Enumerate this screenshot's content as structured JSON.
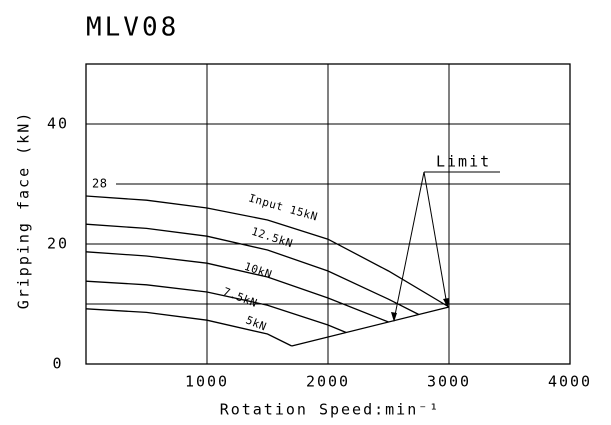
{
  "chart_data": {
    "type": "line",
    "title": "MLV08",
    "x_label": "Rotation Speed:min⁻¹",
    "y_label": "Gripping face (kN)",
    "xlim": [
      0,
      4000
    ],
    "xticks": [
      1000,
      2000,
      3000,
      4000
    ],
    "ylim": [
      0,
      50
    ],
    "yticks": [
      0,
      20,
      40
    ],
    "ygrid": [
      10,
      20,
      30,
      40
    ],
    "grid": true,
    "annotations": [
      "28",
      "Limit"
    ],
    "series": [
      {
        "name": "Input 15kN",
        "color": "#000000",
        "x": [
          0,
          500,
          1000,
          1500,
          2000,
          2500,
          3000
        ],
        "values": [
          28,
          27.3,
          26,
          24,
          20.8,
          15.5,
          9.5
        ]
      },
      {
        "name": "12.5kN",
        "color": "#000000",
        "x": [
          0,
          500,
          1000,
          1500,
          2000,
          2500,
          2750
        ],
        "values": [
          23.3,
          22.6,
          21.3,
          19,
          15.5,
          10.8,
          8.25
        ]
      },
      {
        "name": "10kN",
        "color": "#000000",
        "x": [
          0,
          500,
          1000,
          1500,
          2000,
          2500
        ],
        "values": [
          18.7,
          18,
          16.8,
          14.5,
          11,
          7
        ]
      },
      {
        "name": "7.5kN",
        "color": "#000000",
        "x": [
          0,
          500,
          1000,
          1500,
          2000,
          2150
        ],
        "values": [
          13.8,
          13.2,
          12,
          9.8,
          6.5,
          5.25
        ]
      },
      {
        "name": "5kN",
        "color": "#000000",
        "x": [
          0,
          500,
          1000,
          1500,
          1700
        ],
        "values": [
          9.2,
          8.6,
          7.3,
          5,
          3
        ]
      },
      {
        "name": "Limit",
        "color": "#000000",
        "x": [
          1700,
          3000
        ],
        "values": [
          3,
          9.5
        ]
      }
    ]
  }
}
